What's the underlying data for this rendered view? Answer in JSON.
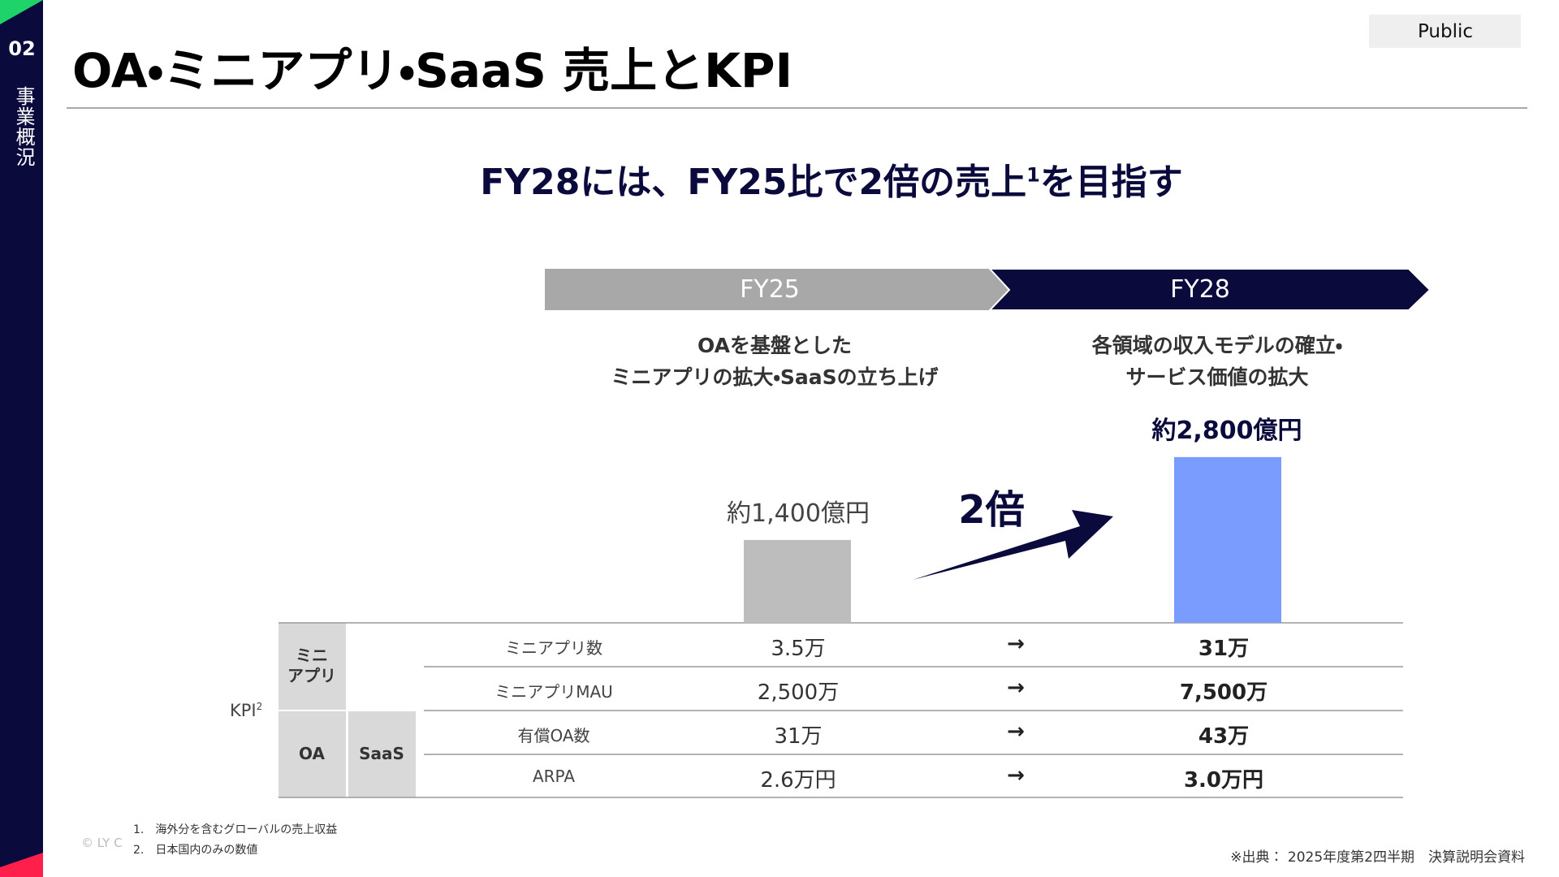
{
  "sidebar": {
    "number": "02",
    "section": "事業概況"
  },
  "header": {
    "title": "OA・ミニアプリ・SaaS 売上とKPI",
    "badge": "Public"
  },
  "headline": {
    "text": "FY28には、FY25比で2倍の売上",
    "note": "1",
    "tail": "を目指す"
  },
  "phases": [
    {
      "label": "FY25",
      "description": [
        "OAを基盤とした",
        "ミニアプリの拡大・SaaSの立ち上げ"
      ],
      "revenue_label": "約1,400億円",
      "revenue": 1400
    },
    {
      "label": "FY28",
      "description": [
        "各領域の収入モデルの確立・",
        "サービス価値の拡大"
      ],
      "revenue_label": "約2,800億円",
      "revenue": 2800
    }
  ],
  "growth_label": "2倍",
  "kpi": {
    "label": "KPI",
    "note": "2",
    "groups": {
      "mini_app": [
        "ミニ",
        "アプリ"
      ],
      "oa": "OA",
      "saas": "SaaS"
    },
    "arrow": "→",
    "rows": [
      [
        "ミニアプリ数",
        "3.5万",
        "31万"
      ],
      [
        "ミニアプリMAU",
        "2,500万",
        "7,500万"
      ],
      [
        "有償OA数",
        "31万",
        "43万"
      ],
      [
        "ARPA",
        "2.6万円",
        "3.0万円"
      ]
    ]
  },
  "footnotes": [
    "1.　海外分を含むグローバルの売上収益",
    "2.　日本国内のみの数値"
  ],
  "copyright": "© LY C",
  "source": "※出典： 2025年度第2四半期　決算説明会資料"
}
